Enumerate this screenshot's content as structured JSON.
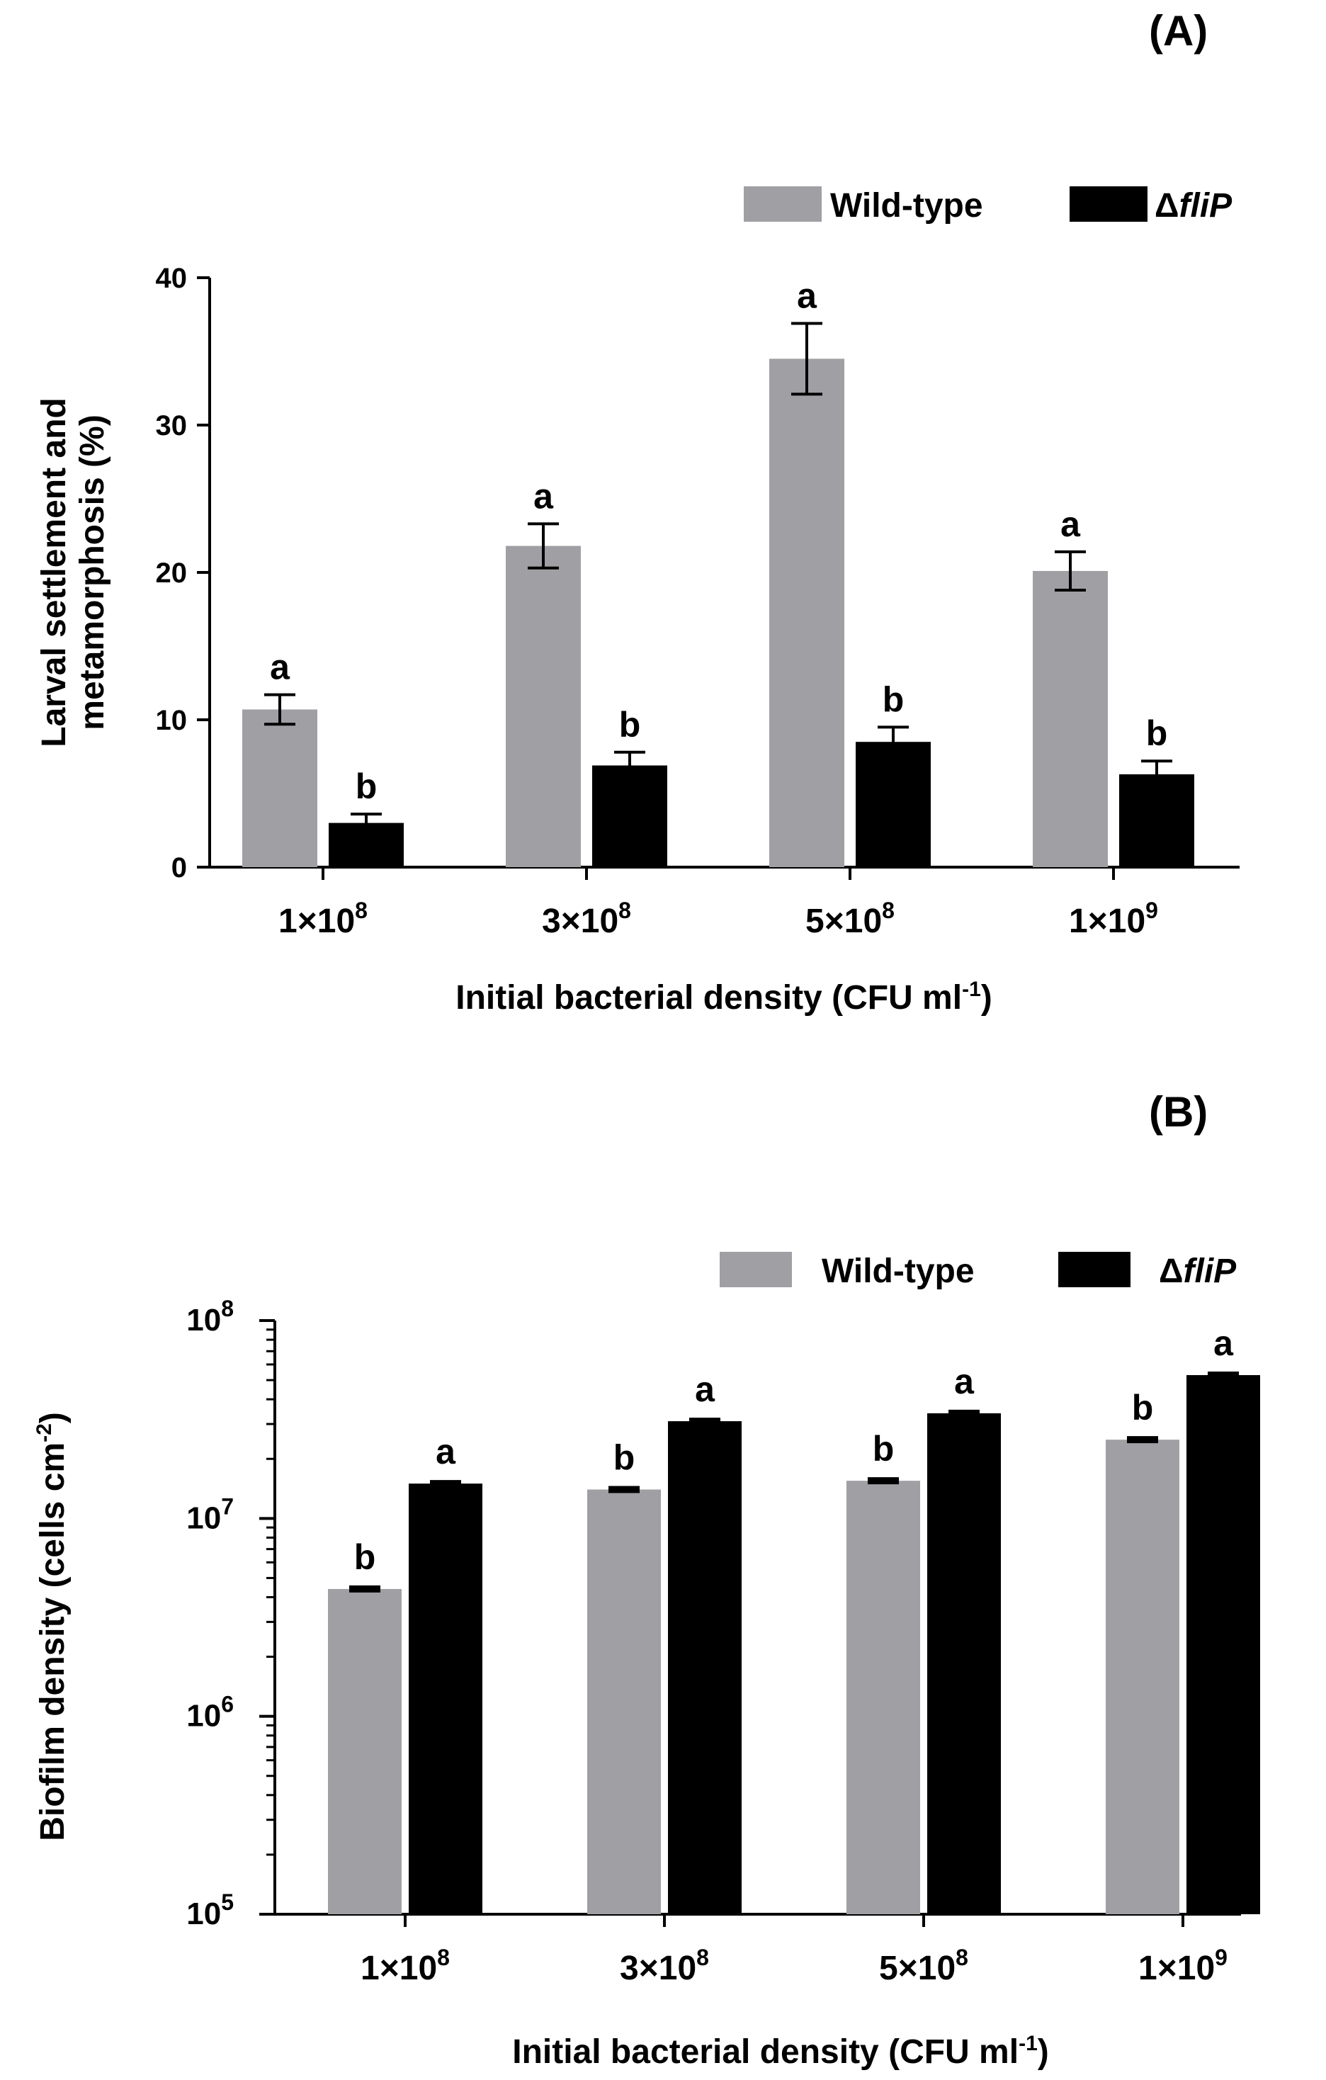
{
  "colors": {
    "wild_type": "#a09fa4",
    "fliP": "#000000",
    "axis": "#000000",
    "background": "#ffffff"
  },
  "chart_data": [
    {
      "panel": "(A)",
      "type": "bar",
      "ylabel_line1": "Larval settlement and",
      "ylabel_line2": "metamorphosis (%)",
      "xlabel": "Initial bacterial density (CFU ml",
      "xlabel_sup": "-1",
      "xlabel_end": ")",
      "ylim": [
        0,
        40
      ],
      "yticks": [
        0,
        10,
        20,
        30,
        40
      ],
      "legend": {
        "placement": "top-right",
        "items": [
          {
            "key": "wt",
            "text": "Wild-type"
          },
          {
            "key": "mut",
            "prefix": "Δ",
            "text": "fliP"
          }
        ]
      },
      "categories": [
        {
          "base": "1×10",
          "exp": "8"
        },
        {
          "base": "3×10",
          "exp": "8"
        },
        {
          "base": "5×10",
          "exp": "8"
        },
        {
          "base": "1×10",
          "exp": "9"
        }
      ],
      "series": [
        {
          "name": "Wild-type",
          "values": [
            10.7,
            21.8,
            34.5,
            20.1
          ],
          "errors": [
            1.0,
            1.5,
            2.4,
            1.3
          ],
          "letters": [
            "a",
            "a",
            "a",
            "a"
          ]
        },
        {
          "name": "ΔfliP",
          "values": [
            3.0,
            6.9,
            8.5,
            6.3
          ],
          "errors": [
            0.6,
            0.9,
            1.0,
            0.9
          ],
          "letters": [
            "b",
            "b",
            "b",
            "b"
          ]
        }
      ]
    },
    {
      "panel": "(B)",
      "type": "bar",
      "yscale": "log",
      "ylabel": "Biofilm density (cells cm",
      "ylabel_sup": "-2",
      "ylabel_end": ")",
      "xlabel": "Initial bacterial density (CFU ml",
      "xlabel_sup": "-1",
      "xlabel_end": ")",
      "ylim": [
        100000,
        100000000
      ],
      "yticks": [
        {
          "value": 100000,
          "base": "10",
          "exp": "5"
        },
        {
          "value": 1000000,
          "base": "10",
          "exp": "6"
        },
        {
          "value": 10000000,
          "base": "10",
          "exp": "7"
        },
        {
          "value": 100000000,
          "base": "10",
          "exp": "8"
        }
      ],
      "legend": {
        "placement": "top-right",
        "items": [
          {
            "key": "wt",
            "text": "Wild-type"
          },
          {
            "key": "mut",
            "prefix": "Δ",
            "text": "fliP"
          }
        ]
      },
      "categories": [
        {
          "base": "1×10",
          "exp": "8"
        },
        {
          "base": "3×10",
          "exp": "8"
        },
        {
          "base": "5×10",
          "exp": "8"
        },
        {
          "base": "1×10",
          "exp": "9"
        }
      ],
      "series": [
        {
          "name": "Wild-type",
          "values": [
            4400000,
            14000000,
            15500000,
            25000000
          ],
          "letters": [
            "b",
            "b",
            "b",
            "b"
          ]
        },
        {
          "name": "ΔfliP",
          "values": [
            15000000,
            31000000,
            34000000,
            53000000
          ],
          "letters": [
            "a",
            "a",
            "a",
            "a"
          ]
        }
      ]
    }
  ]
}
